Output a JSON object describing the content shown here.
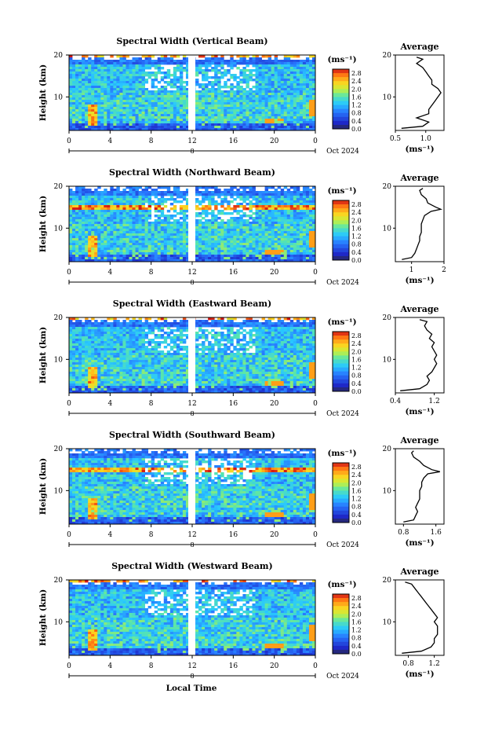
{
  "figure": {
    "xlabel": "Local Time",
    "date_label": "Oct 2024",
    "day_marker": "8"
  },
  "chart_data": [
    {
      "type": "heatmap",
      "title": "Spectral Width (Vertical Beam)",
      "ylabel": "Height (km)",
      "xlim": [
        0,
        24
      ],
      "ylim": [
        2,
        20
      ],
      "x_ticks": [
        "0",
        "4",
        "8",
        "12",
        "16",
        "20",
        "0"
      ],
      "y_ticks": [
        "20",
        "10"
      ],
      "colorbar": {
        "unit": "(ms⁻¹)",
        "ticks": [
          "2.8",
          "2.4",
          "2.0",
          "1.6",
          "1.2",
          "0.8",
          "0.4",
          "0.0"
        ],
        "range": [
          0.0,
          3.0
        ]
      },
      "average": {
        "title": "Average",
        "xlabel": "(ms⁻¹)",
        "x_ticks": [
          "0.5",
          "1.0"
        ],
        "xlim": [
          0.5,
          1.3
        ],
        "ylim": [
          2,
          20
        ],
        "y_ticks": [
          "20",
          "10"
        ],
        "profile_height_km": [
          2.5,
          3,
          4,
          5,
          6,
          7,
          8,
          9,
          10,
          11,
          12,
          13,
          14,
          15,
          16,
          17,
          18,
          19,
          19.5
        ],
        "profile_width_ms": [
          0.6,
          0.95,
          1.05,
          0.85,
          1.05,
          1.05,
          1.1,
          1.15,
          1.2,
          1.25,
          1.2,
          1.1,
          1.1,
          1.05,
          1.0,
          0.95,
          0.85,
          0.95,
          0.85
        ]
      }
    },
    {
      "type": "heatmap",
      "title": "Spectral Width (Northward Beam)",
      "ylabel": "Height (km)",
      "xlim": [
        0,
        24
      ],
      "ylim": [
        2,
        20
      ],
      "x_ticks": [
        "0",
        "4",
        "8",
        "12",
        "16",
        "20",
        "0"
      ],
      "y_ticks": [
        "20",
        "10"
      ],
      "colorbar": {
        "unit": "(ms⁻¹)",
        "ticks": [
          "2.8",
          "2.4",
          "2.0",
          "1.6",
          "1.2",
          "0.8",
          "0.4",
          "0.0"
        ],
        "range": [
          0.0,
          3.0
        ]
      },
      "average": {
        "title": "Average",
        "xlabel": "(ms⁻¹)",
        "x_ticks": [
          "1",
          "2"
        ],
        "xlim": [
          0.5,
          2.0
        ],
        "ylim": [
          2,
          20
        ],
        "y_ticks": [
          "20",
          "10"
        ],
        "profile_height_km": [
          2.5,
          3,
          4,
          5,
          6,
          7,
          8,
          9,
          10,
          11,
          12,
          13,
          14,
          14.5,
          15,
          16,
          17,
          18,
          19,
          19.5
        ],
        "profile_width_ms": [
          0.7,
          1.0,
          1.1,
          1.15,
          1.2,
          1.25,
          1.25,
          1.3,
          1.3,
          1.3,
          1.35,
          1.4,
          1.6,
          1.9,
          1.75,
          1.5,
          1.45,
          1.3,
          1.25,
          1.35
        ]
      }
    },
    {
      "type": "heatmap",
      "title": "Spectral Width (Eastward Beam)",
      "ylabel": "Height (km)",
      "xlim": [
        0,
        24
      ],
      "ylim": [
        2,
        20
      ],
      "x_ticks": [
        "0",
        "4",
        "8",
        "12",
        "16",
        "20",
        "0"
      ],
      "y_ticks": [
        "20",
        "10"
      ],
      "colorbar": {
        "unit": "(ms⁻¹)",
        "ticks": [
          "2.8",
          "2.4",
          "2.0",
          "1.6",
          "1.2",
          "0.8",
          "0.4",
          "0.0"
        ],
        "range": [
          0.0,
          3.0
        ]
      },
      "average": {
        "title": "Average",
        "xlabel": "(ms⁻¹)",
        "x_ticks": [
          "0.4",
          "1.2"
        ],
        "xlim": [
          0.4,
          1.4
        ],
        "ylim": [
          2,
          20
        ],
        "y_ticks": [
          "20",
          "10"
        ],
        "profile_height_km": [
          2.5,
          3,
          4,
          5,
          6,
          7,
          8,
          9,
          10,
          11,
          12,
          13,
          14,
          15,
          16,
          17,
          18,
          19,
          19.5
        ],
        "profile_width_ms": [
          0.5,
          0.9,
          1.05,
          1.1,
          1.05,
          1.15,
          1.2,
          1.25,
          1.2,
          1.25,
          1.2,
          1.15,
          1.2,
          1.1,
          1.15,
          1.05,
          1.0,
          1.05,
          0.9
        ]
      }
    },
    {
      "type": "heatmap",
      "title": "Spectral Width (Southward Beam)",
      "ylabel": "Height (km)",
      "xlim": [
        0,
        24
      ],
      "ylim": [
        2,
        20
      ],
      "x_ticks": [
        "0",
        "4",
        "8",
        "12",
        "16",
        "20",
        "0"
      ],
      "y_ticks": [
        "20",
        "10"
      ],
      "colorbar": {
        "unit": "(ms⁻¹)",
        "ticks": [
          "2.8",
          "2.4",
          "2.0",
          "1.6",
          "1.2",
          "0.8",
          "0.4",
          "0.0"
        ],
        "range": [
          0.0,
          3.0
        ]
      },
      "average": {
        "title": "Average",
        "xlabel": "(ms⁻¹)",
        "x_ticks": [
          "0.8",
          "1.6"
        ],
        "xlim": [
          0.6,
          1.8
        ],
        "ylim": [
          2,
          20
        ],
        "y_ticks": [
          "20",
          "10"
        ],
        "profile_height_km": [
          2.5,
          3,
          4,
          5,
          6,
          7,
          8,
          9,
          10,
          11,
          12,
          13,
          14,
          14.5,
          15,
          16,
          17,
          18,
          19,
          19.5
        ],
        "profile_width_ms": [
          0.8,
          1.05,
          1.1,
          1.15,
          1.1,
          1.15,
          1.2,
          1.2,
          1.2,
          1.25,
          1.25,
          1.3,
          1.4,
          1.7,
          1.5,
          1.3,
          1.2,
          1.05,
          1.0,
          1.05
        ]
      }
    },
    {
      "type": "heatmap",
      "title": "Spectral Width (Westward Beam)",
      "ylabel": "Height (km)",
      "xlim": [
        0,
        24
      ],
      "ylim": [
        2,
        20
      ],
      "x_ticks": [
        "0",
        "4",
        "8",
        "12",
        "16",
        "20",
        "0"
      ],
      "y_ticks": [
        "20",
        "10"
      ],
      "colorbar": {
        "unit": "(ms⁻¹)",
        "ticks": [
          "2.8",
          "2.4",
          "2.0",
          "1.6",
          "1.2",
          "0.8",
          "0.4",
          "0.0"
        ],
        "range": [
          0.0,
          3.0
        ]
      },
      "average": {
        "title": "Average",
        "xlabel": "(ms⁻¹)",
        "x_ticks": [
          "0.8",
          "1.2"
        ],
        "xlim": [
          0.6,
          1.35
        ],
        "ylim": [
          2,
          20
        ],
        "y_ticks": [
          "20",
          "10"
        ],
        "profile_height_km": [
          2.5,
          3,
          4,
          5,
          6,
          7,
          8,
          9,
          10,
          11,
          12,
          13,
          14,
          15,
          16,
          17,
          18,
          19,
          19.5
        ],
        "profile_width_ms": [
          0.7,
          1.0,
          1.15,
          1.2,
          1.2,
          1.25,
          1.25,
          1.25,
          1.2,
          1.25,
          1.2,
          1.15,
          1.1,
          1.05,
          1.0,
          0.95,
          0.9,
          0.85,
          0.75
        ]
      }
    }
  ]
}
